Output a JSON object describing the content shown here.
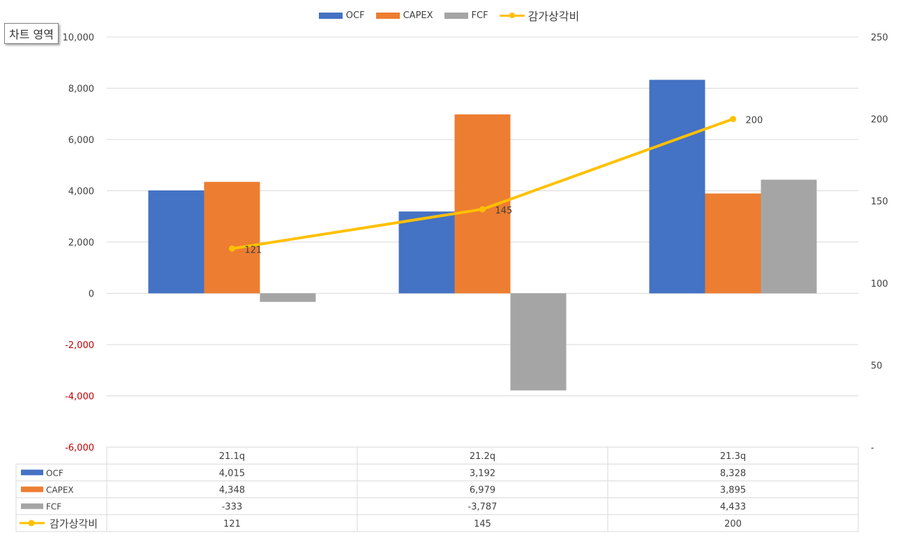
{
  "tooltip": "차트 영역",
  "legend": [
    {
      "name": "OCF",
      "color": "#4472C4",
      "kind": "bar"
    },
    {
      "name": "CAPEX",
      "color": "#ED7D31",
      "kind": "bar"
    },
    {
      "name": "FCF",
      "color": "#A5A5A5",
      "kind": "bar"
    },
    {
      "name": "감가상각비",
      "color": "#FFC000",
      "kind": "line"
    }
  ],
  "chart_data": {
    "type": "bar",
    "categories": [
      "21.1q",
      "21.2q",
      "21.3q"
    ],
    "series": [
      {
        "name": "OCF",
        "values": [
          4015,
          3192,
          8328
        ],
        "color": "#4472C4",
        "axis": "left",
        "type": "bar"
      },
      {
        "name": "CAPEX",
        "values": [
          4348,
          6979,
          3895
        ],
        "color": "#ED7D31",
        "axis": "left",
        "type": "bar"
      },
      {
        "name": "FCF",
        "values": [
          -333,
          -3787,
          4433
        ],
        "color": "#A5A5A5",
        "axis": "left",
        "type": "bar"
      },
      {
        "name": "감가상각비",
        "values": [
          121,
          145,
          200
        ],
        "color": "#FFC000",
        "axis": "right",
        "type": "line"
      }
    ],
    "line_labels": [
      "121",
      "145",
      "200"
    ],
    "y_left": {
      "min": -6000,
      "max": 10000,
      "ticks": [
        "10,000",
        "8,000",
        "6,000",
        "4,000",
        "2,000",
        "0",
        "-2,000",
        "-4,000",
        "-6,000"
      ],
      "negative_color": "#C00000"
    },
    "y_right": {
      "min": 0,
      "max": 250,
      "ticks": [
        "250",
        "200",
        "150",
        "100",
        "50",
        "-"
      ]
    },
    "grid": true,
    "legend_position": "top",
    "data_table": {
      "header": [
        "21.1q",
        "21.2q",
        "21.3q"
      ],
      "rows": [
        {
          "label": "OCF",
          "values": [
            "4,015",
            "3,192",
            "8,328"
          ]
        },
        {
          "label": "CAPEX",
          "values": [
            "4,348",
            "6,979",
            "3,895"
          ]
        },
        {
          "label": "FCF",
          "values": [
            "-333",
            "-3,787",
            "4,433"
          ]
        },
        {
          "label": "감가상각비",
          "values": [
            "121",
            "145",
            "200"
          ]
        }
      ]
    }
  }
}
